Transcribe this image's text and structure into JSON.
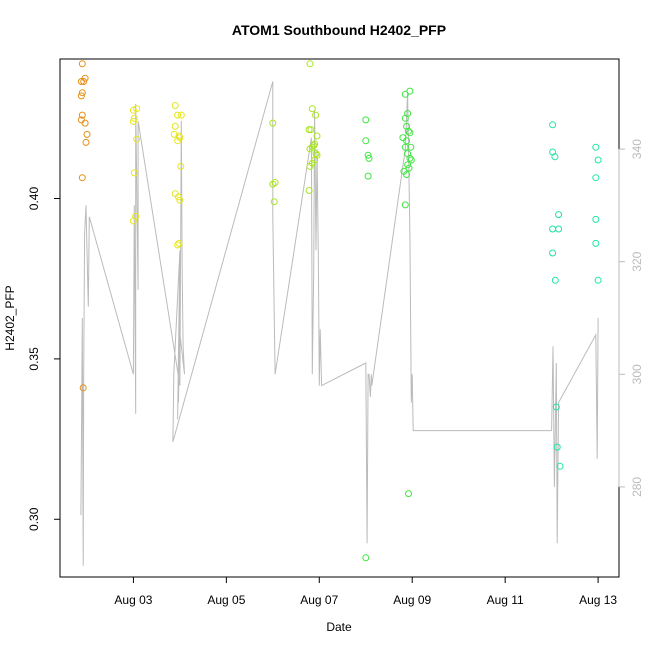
{
  "chart_data": {
    "type": "scatter",
    "title": "ATOM1 Southbound H2402_PFP",
    "xlabel": "Date",
    "ylabel": "H2402_PFP",
    "x_tick_labels": [
      "Aug 03",
      "Aug 05",
      "Aug 07",
      "Aug 09",
      "Aug 11",
      "Aug 13"
    ],
    "x_tick_values": [
      3,
      5,
      7,
      9,
      11,
      13
    ],
    "xlim": [
      1.42,
      13.45
    ],
    "ylim": [
      0.282,
      0.4435
    ],
    "y_ticks": [
      0.3,
      0.35,
      0.4
    ],
    "y_tick_labels": [
      "0.30",
      "0.35",
      "0.40"
    ],
    "y2lim": [
      264,
      356
    ],
    "y2_ticks": [
      280,
      300,
      320,
      340
    ],
    "y2_tick_labels": [
      "280",
      "300",
      "320",
      "340"
    ],
    "grid": false,
    "series": [
      {
        "color": "#E69018",
        "points": [
          [
            1.9,
            0.442
          ],
          [
            1.88,
            0.4365
          ],
          [
            1.93,
            0.4365
          ],
          [
            1.96,
            0.4375
          ],
          [
            1.9,
            0.433
          ],
          [
            1.88,
            0.432
          ],
          [
            1.9,
            0.426
          ],
          [
            1.88,
            0.4245
          ],
          [
            1.96,
            0.4235
          ],
          [
            2.0,
            0.42
          ],
          [
            1.98,
            0.4175
          ],
          [
            1.9,
            0.4065
          ],
          [
            1.92,
            0.341
          ]
        ]
      },
      {
        "color": "#E6E620",
        "points": [
          [
            3.0,
            0.4275
          ],
          [
            3.07,
            0.428
          ],
          [
            3.02,
            0.425
          ],
          [
            3.0,
            0.424
          ],
          [
            3.07,
            0.4185
          ],
          [
            3.02,
            0.408
          ],
          [
            3.05,
            0.3945
          ],
          [
            3.0,
            0.393
          ],
          [
            3.9,
            0.429
          ],
          [
            3.95,
            0.426
          ],
          [
            4.03,
            0.426
          ],
          [
            3.9,
            0.4225
          ],
          [
            3.88,
            0.42
          ],
          [
            3.98,
            0.4195
          ],
          [
            4.0,
            0.419
          ],
          [
            3.95,
            0.418
          ],
          [
            4.02,
            0.41
          ],
          [
            3.9,
            0.4015
          ],
          [
            3.97,
            0.4005
          ],
          [
            4.0,
            0.3995
          ],
          [
            3.98,
            0.386
          ],
          [
            3.95,
            0.3855
          ]
        ]
      },
      {
        "color": "#A8E620",
        "points": [
          [
            6.0,
            0.4235
          ],
          [
            6.0,
            0.4045
          ],
          [
            6.05,
            0.405
          ],
          [
            6.03,
            0.399
          ],
          [
            6.8,
            0.442
          ],
          [
            6.85,
            0.428
          ],
          [
            6.92,
            0.426
          ],
          [
            6.78,
            0.4215
          ],
          [
            6.82,
            0.4215
          ],
          [
            6.95,
            0.4195
          ],
          [
            6.88,
            0.4165
          ],
          [
            6.9,
            0.417
          ],
          [
            6.85,
            0.416
          ],
          [
            6.8,
            0.4155
          ],
          [
            6.93,
            0.414
          ],
          [
            6.95,
            0.4135
          ],
          [
            6.9,
            0.412
          ],
          [
            6.85,
            0.411
          ],
          [
            6.8,
            0.41
          ],
          [
            6.78,
            0.4025
          ]
        ]
      },
      {
        "color": "#40E640",
        "points": [
          [
            8.0,
            0.4245
          ],
          [
            8.0,
            0.418
          ],
          [
            8.05,
            0.4135
          ],
          [
            8.07,
            0.4125
          ],
          [
            8.05,
            0.407
          ],
          [
            8.0,
            0.288
          ],
          [
            8.85,
            0.4325
          ],
          [
            8.95,
            0.4335
          ],
          [
            8.9,
            0.4265
          ],
          [
            8.85,
            0.425
          ],
          [
            8.88,
            0.4225
          ],
          [
            8.92,
            0.421
          ],
          [
            8.95,
            0.4205
          ],
          [
            8.8,
            0.419
          ],
          [
            8.88,
            0.418
          ],
          [
            8.85,
            0.416
          ],
          [
            8.97,
            0.416
          ],
          [
            8.9,
            0.414
          ],
          [
            8.95,
            0.4125
          ],
          [
            8.98,
            0.412
          ],
          [
            8.9,
            0.4105
          ],
          [
            8.93,
            0.4095
          ],
          [
            8.82,
            0.4085
          ],
          [
            8.88,
            0.4075
          ],
          [
            8.85,
            0.398
          ],
          [
            8.92,
            0.308
          ]
        ]
      },
      {
        "color": "#20E6A0",
        "points": [
          [
            12.02,
            0.423
          ],
          [
            12.02,
            0.4145
          ],
          [
            12.07,
            0.413
          ],
          [
            12.15,
            0.395
          ],
          [
            12.02,
            0.3905
          ],
          [
            12.15,
            0.3905
          ],
          [
            12.02,
            0.383
          ],
          [
            12.08,
            0.3745
          ],
          [
            12.1,
            0.335
          ],
          [
            12.12,
            0.3225
          ],
          [
            12.18,
            0.3165
          ],
          [
            12.95,
            0.416
          ],
          [
            13.0,
            0.412
          ],
          [
            12.95,
            0.4065
          ],
          [
            12.95,
            0.3935
          ],
          [
            12.95,
            0.386
          ],
          [
            13.0,
            0.3745
          ]
        ]
      }
    ],
    "line_series": {
      "color": "#bbbbbb",
      "axis": "right",
      "points": [
        [
          1.87,
          275
        ],
        [
          1.9,
          310
        ],
        [
          1.92,
          266
        ],
        [
          1.93,
          300
        ],
        [
          1.95,
          325
        ],
        [
          1.98,
          330
        ],
        [
          2.0,
          322
        ],
        [
          2.03,
          312
        ],
        [
          2.05,
          328
        ],
        [
          3.0,
          300
        ],
        [
          3.02,
          330
        ],
        [
          3.05,
          293
        ],
        [
          3.05,
          348
        ],
        [
          3.1,
          315
        ],
        [
          3.1,
          345
        ],
        [
          4.0,
          298
        ],
        [
          4.03,
          345
        ],
        [
          4.05,
          318
        ],
        [
          4.07,
          305
        ],
        [
          4.1,
          300
        ],
        [
          3.99,
          308
        ],
        [
          3.97,
          295
        ],
        [
          4.0,
          315
        ],
        [
          3.95,
          292
        ],
        [
          4.0,
          322
        ],
        [
          3.87,
          300
        ],
        [
          3.85,
          288
        ],
        [
          6.0,
          352
        ],
        [
          6.0,
          328
        ],
        [
          6.05,
          300
        ],
        [
          6.83,
          342
        ],
        [
          6.85,
          300
        ],
        [
          6.88,
          318
        ],
        [
          6.9,
          347
        ],
        [
          6.93,
          322
        ],
        [
          6.95,
          340
        ],
        [
          6.98,
          320
        ],
        [
          7.0,
          298
        ],
        [
          7.02,
          308
        ],
        [
          7.05,
          298
        ],
        [
          8.0,
          302
        ],
        [
          8.03,
          270
        ],
        [
          8.05,
          300
        ],
        [
          8.07,
          300
        ],
        [
          8.1,
          296
        ],
        [
          8.12,
          300
        ],
        [
          8.13,
          298
        ],
        [
          8.85,
          340
        ],
        [
          8.9,
          350
        ],
        [
          8.95,
          325
        ],
        [
          8.98,
          295
        ],
        [
          9.0,
          300
        ],
        [
          9.02,
          290
        ],
        [
          12.0,
          290
        ],
        [
          12.03,
          305
        ],
        [
          12.06,
          280
        ],
        [
          12.1,
          302
        ],
        [
          12.12,
          270
        ],
        [
          12.15,
          295
        ],
        [
          12.95,
          307
        ],
        [
          12.98,
          285
        ],
        [
          13.0,
          310
        ]
      ]
    }
  }
}
